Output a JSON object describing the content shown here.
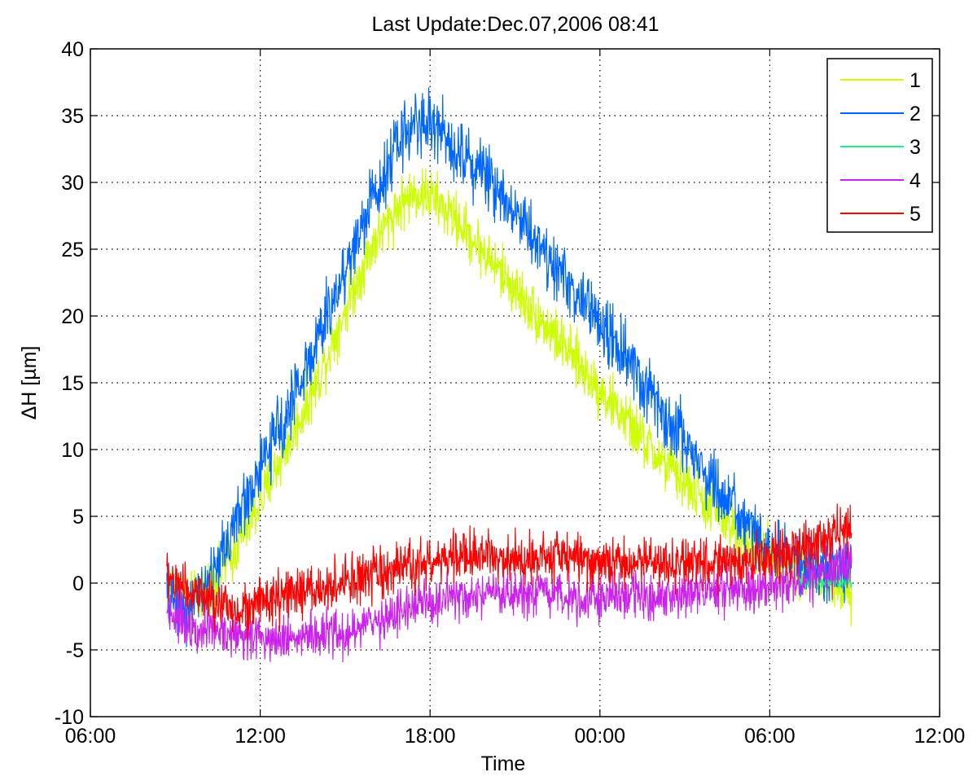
{
  "chart_data": {
    "type": "line",
    "title": "Last Update:Dec.07,2006 08:41",
    "xlabel": "Time",
    "ylabel": "ΔH [µm]",
    "x_unit": "hours (6 = 06:00 first day)",
    "xlim": [
      6,
      36
    ],
    "ylim": [
      -10,
      40
    ],
    "x_ticks": [
      6,
      12,
      18,
      24,
      30,
      36
    ],
    "x_tick_labels": [
      "06:00",
      "12:00",
      "18:00",
      "00:00",
      "06:00",
      "12:00"
    ],
    "y_ticks": [
      -10,
      -5,
      0,
      5,
      10,
      15,
      20,
      25,
      30,
      35,
      40
    ],
    "y_tick_labels": [
      "-10",
      "-5",
      "0",
      "5",
      "10",
      "15",
      "20",
      "25",
      "30",
      "35",
      "40"
    ],
    "grid": true,
    "legend_position": "top-right",
    "series": [
      {
        "name": "1",
        "color": "#ccff00",
        "noise": 1.5,
        "x": [
          8.7,
          9.5,
          10.3,
          11.0,
          12.0,
          13.0,
          14.0,
          15.0,
          16.0,
          17.0,
          17.5,
          18.0,
          19.0,
          20.0,
          21.0,
          22.0,
          23.0,
          24.0,
          25.0,
          26.0,
          27.0,
          28.0,
          29.0,
          30.0,
          30.5,
          31.0,
          31.5,
          32.2,
          32.9
        ],
        "y": [
          0,
          -1.5,
          0,
          2.0,
          6.0,
          10.5,
          15.0,
          20.5,
          25.5,
          28.5,
          29.2,
          29.0,
          27.0,
          24.5,
          22.0,
          19.5,
          17.0,
          14.5,
          12.0,
          9.5,
          7.5,
          5.5,
          3.5,
          2.0,
          1.5,
          1.0,
          0.5,
          0,
          -1.0
        ]
      },
      {
        "name": "2",
        "color": "#0066ff",
        "noise": 1.8,
        "x": [
          8.7,
          9.5,
          10.3,
          11.0,
          12.0,
          13.0,
          14.0,
          15.0,
          16.0,
          17.0,
          17.5,
          18.0,
          19.0,
          20.0,
          21.0,
          22.0,
          23.0,
          24.0,
          25.0,
          26.0,
          27.0,
          28.0,
          29.0,
          30.0,
          30.5,
          31.0,
          31.5,
          32.2,
          32.9
        ],
        "y": [
          -1.0,
          -2.0,
          0.5,
          4.0,
          8.5,
          13.0,
          18.0,
          23.5,
          29.0,
          33.5,
          34.5,
          34.5,
          32.5,
          30.5,
          28.0,
          25.0,
          22.0,
          19.5,
          16.5,
          13.5,
          10.5,
          7.5,
          4.5,
          2.5,
          2.0,
          1.5,
          1.0,
          1.0,
          1.5
        ]
      },
      {
        "name": "3",
        "color": "#22ee88",
        "noise": 0.3,
        "x": [
          31.0,
          31.5,
          32.2,
          32.9
        ],
        "y": [
          0,
          0,
          0,
          0
        ]
      },
      {
        "name": "4",
        "color": "#cc22ee",
        "noise": 1.3,
        "x": [
          8.7,
          9.5,
          10.3,
          11.0,
          12.0,
          13.0,
          14.0,
          15.0,
          16.0,
          17.0,
          18.0,
          19.0,
          20.0,
          21.0,
          22.0,
          23.0,
          24.0,
          25.0,
          26.0,
          27.0,
          28.0,
          29.0,
          30.0,
          31.0,
          31.5,
          32.2,
          32.9
        ],
        "y": [
          -2.0,
          -3.0,
          -3.5,
          -3.8,
          -4.0,
          -4.0,
          -4.0,
          -3.8,
          -3.0,
          -2.0,
          -1.5,
          -1.2,
          -1.0,
          -1.0,
          -1.0,
          -1.0,
          -1.0,
          -1.0,
          -1.0,
          -0.8,
          -0.6,
          -0.5,
          -0.3,
          0,
          0.5,
          1.0,
          1.5
        ]
      },
      {
        "name": "5",
        "color": "#ff0000",
        "noise": 1.4,
        "x": [
          8.7,
          9.5,
          10.3,
          11.0,
          12.0,
          13.0,
          14.0,
          15.0,
          16.0,
          17.0,
          18.0,
          19.0,
          20.0,
          21.0,
          22.0,
          23.0,
          24.0,
          25.0,
          26.0,
          27.0,
          28.0,
          29.0,
          30.0,
          31.0,
          31.5,
          32.2,
          32.9
        ],
        "y": [
          0.5,
          -0.5,
          -1.5,
          -2.0,
          -1.5,
          -1.0,
          -0.5,
          0,
          0.5,
          1.0,
          1.5,
          2.0,
          2.0,
          2.0,
          2.0,
          2.0,
          1.5,
          1.5,
          1.5,
          1.5,
          1.5,
          1.5,
          2.0,
          2.5,
          3.0,
          3.5,
          4.0
        ]
      }
    ]
  }
}
